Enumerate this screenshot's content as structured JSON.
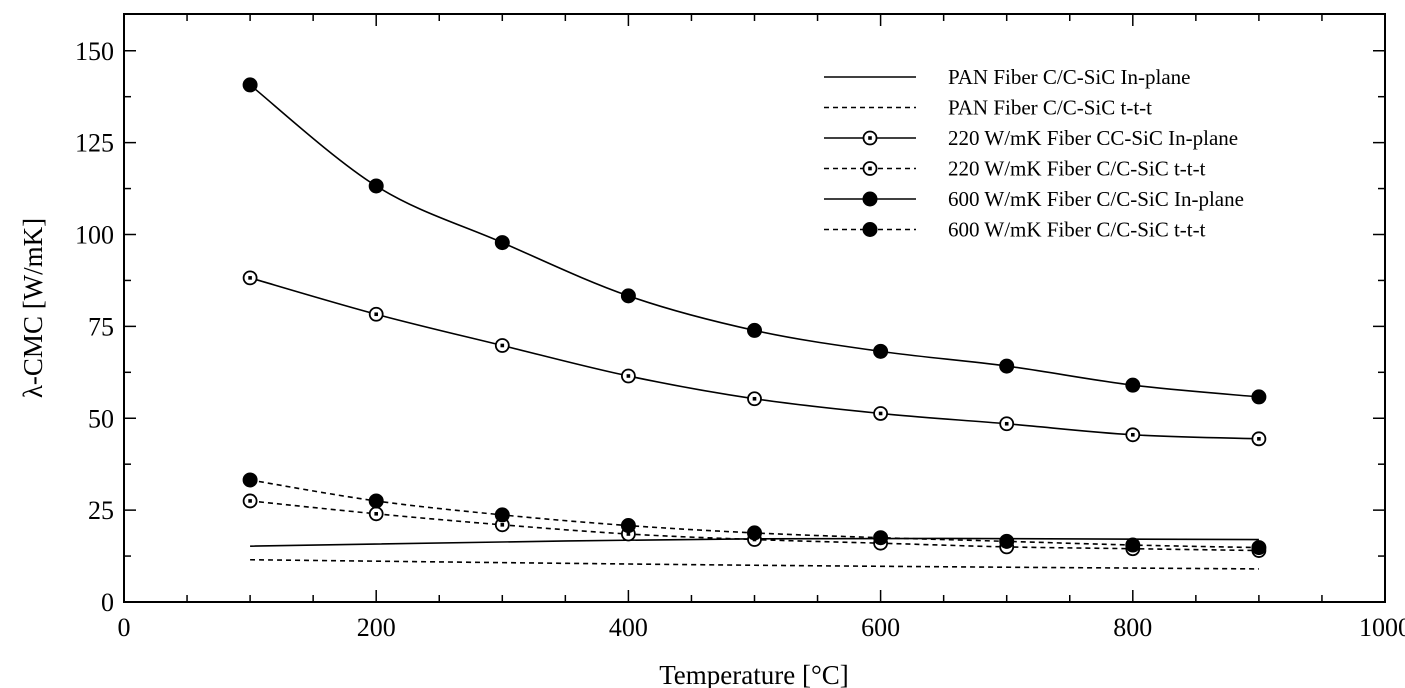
{
  "chart_data": {
    "type": "line",
    "title": "",
    "xlabel": "Temperature [°C]",
    "ylabel": "λ-CMC [W/mK]",
    "xlim": [
      0,
      1000
    ],
    "ylim": [
      0,
      160
    ],
    "xticks": [
      0,
      200,
      400,
      600,
      800,
      1000
    ],
    "yticks": [
      0,
      25,
      50,
      75,
      100,
      125,
      150
    ],
    "legend_position": "top-right",
    "grid": false,
    "series": [
      {
        "name": "PAN Fiber C/C-SiC In-plane",
        "line": "solid",
        "marker": "none",
        "x": [
          100,
          500,
          900
        ],
        "y": [
          15.2,
          17.2,
          17.0
        ]
      },
      {
        "name": "PAN Fiber C/C-SiC t-t-t",
        "line": "dashed",
        "marker": "none",
        "x": [
          100,
          500,
          900
        ],
        "y": [
          11.5,
          10.0,
          9.0
        ]
      },
      {
        "name": "220 W/mK Fiber CC-SiC In-plane",
        "line": "solid",
        "marker": "open-circle",
        "x": [
          100,
          200,
          300,
          400,
          500,
          600,
          700,
          800,
          900
        ],
        "y": [
          88.2,
          78.3,
          69.8,
          61.5,
          55.3,
          51.3,
          48.5,
          45.5,
          44.4
        ]
      },
      {
        "name": "220 W/mK Fiber C/C-SiC t-t-t",
        "line": "dashed",
        "marker": "open-circle",
        "x": [
          100,
          200,
          300,
          400,
          500,
          600,
          700,
          800,
          900
        ],
        "y": [
          27.5,
          24.0,
          21.0,
          18.5,
          17.0,
          16.0,
          15.0,
          14.5,
          14.0
        ]
      },
      {
        "name": "600 W/mK Fiber C/C-SiC In-plane",
        "line": "solid",
        "marker": "filled-circle",
        "x": [
          100,
          200,
          300,
          400,
          500,
          600,
          700,
          800,
          900
        ],
        "y": [
          140.7,
          113.2,
          97.8,
          83.3,
          73.9,
          68.2,
          64.2,
          59.0,
          55.8
        ]
      },
      {
        "name": "600 W/mK Fiber C/C-SiC t-t-t",
        "line": "dashed",
        "marker": "filled-circle",
        "x": [
          100,
          200,
          300,
          400,
          500,
          600,
          700,
          800,
          900
        ],
        "y": [
          33.2,
          27.5,
          23.7,
          20.8,
          18.8,
          17.5,
          16.5,
          15.5,
          14.8
        ]
      }
    ]
  }
}
